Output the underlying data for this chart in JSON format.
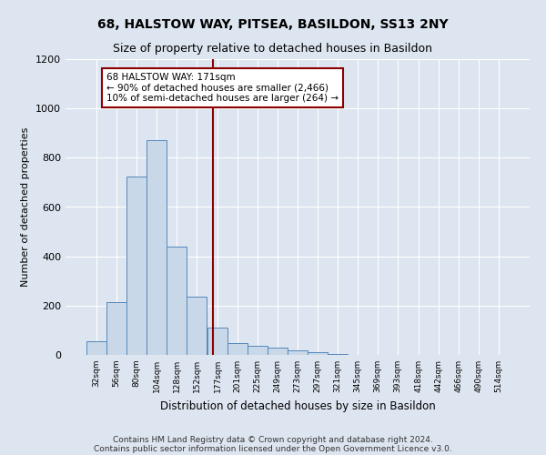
{
  "title": "68, HALSTOW WAY, PITSEA, BASILDON, SS13 2NY",
  "subtitle": "Size of property relative to detached houses in Basildon",
  "xlabel": "Distribution of detached houses by size in Basildon",
  "ylabel": "Number of detached properties",
  "bar_centers": [
    32,
    56,
    80,
    104,
    128,
    152,
    177,
    201,
    225,
    249,
    273,
    297,
    321,
    345,
    369,
    393,
    418,
    442,
    466,
    490,
    514
  ],
  "bar_heights": [
    55,
    215,
    725,
    870,
    440,
    235,
    110,
    47,
    38,
    28,
    17,
    12,
    5,
    0,
    0,
    0,
    0,
    0,
    0,
    0,
    0
  ],
  "bin_width": 24,
  "bar_color": "#c8d8e8",
  "bar_edge_color": "#5588bb",
  "vline_x": 171,
  "vline_color": "#8b0000",
  "annotation_line1": "68 HALSTOW WAY: 171sqm",
  "annotation_line2": "← 90% of detached houses are smaller (2,466)",
  "annotation_line3": "10% of semi-detached houses are larger (264) →",
  "annotation_box_color": "white",
  "annotation_box_edge": "#8b0000",
  "ylim": [
    0,
    1200
  ],
  "yticks": [
    0,
    200,
    400,
    600,
    800,
    1000,
    1200
  ],
  "xtick_labels": [
    "32sqm",
    "56sqm",
    "80sqm",
    "104sqm",
    "128sqm",
    "152sqm",
    "177sqm",
    "201sqm",
    "225sqm",
    "249sqm",
    "273sqm",
    "297sqm",
    "321sqm",
    "345sqm",
    "369sqm",
    "393sqm",
    "418sqm",
    "442sqm",
    "466sqm",
    "490sqm",
    "514sqm"
  ],
  "footer_line1": "Contains HM Land Registry data © Crown copyright and database right 2024.",
  "footer_line2": "Contains public sector information licensed under the Open Government Licence v3.0.",
  "bg_color": "#dde5f0",
  "plot_bg_color": "#dde5f0",
  "title_fontsize": 10,
  "subtitle_fontsize": 9
}
